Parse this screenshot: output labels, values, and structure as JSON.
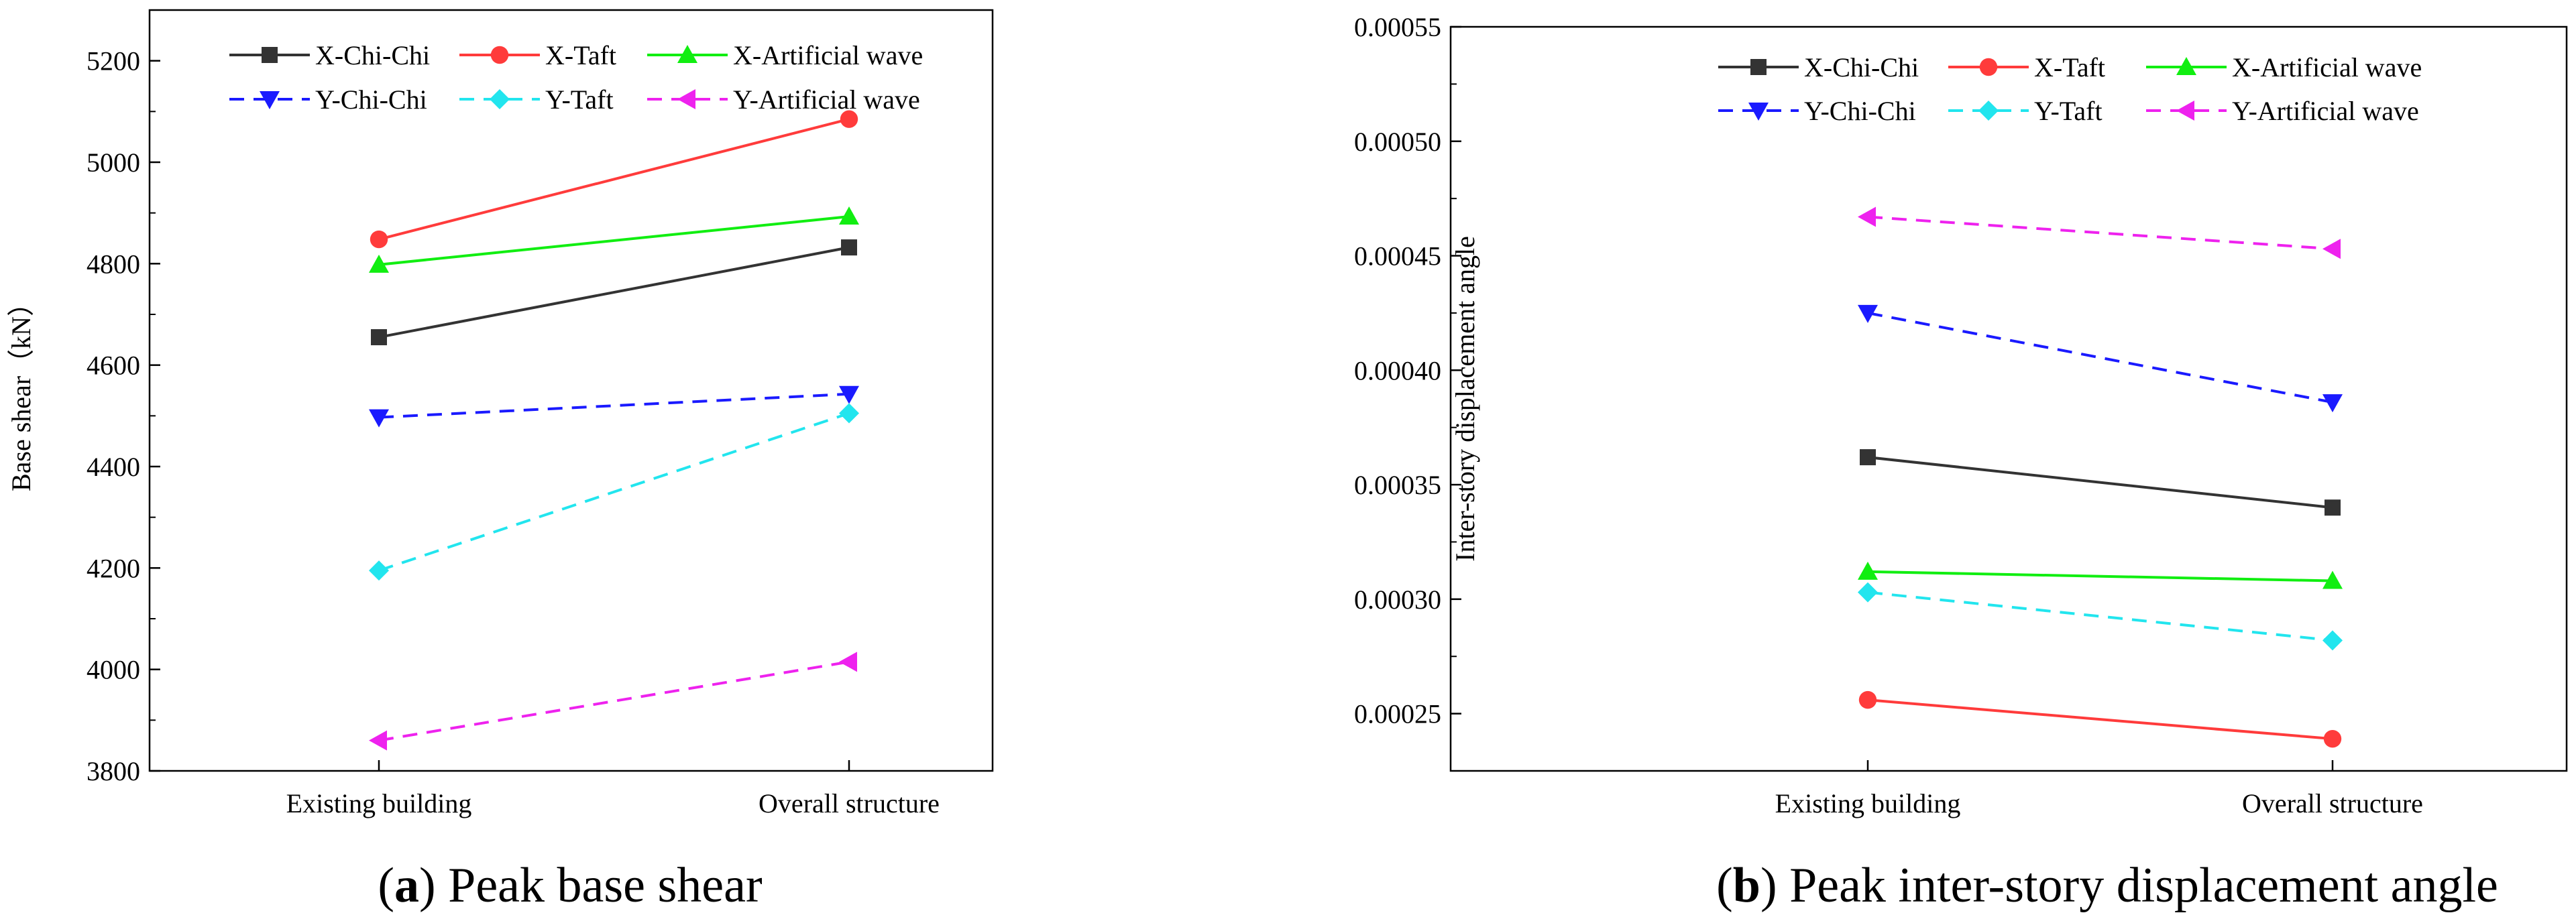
{
  "chart_data": [
    {
      "type": "line",
      "panel_letter": "a",
      "caption": ") Peak base shear",
      "caption_open": "(",
      "categories": [
        "Existing building",
        "Overall structure"
      ],
      "ylabel": "Base shear（kN）",
      "xlabel": "",
      "ylim": [
        3800,
        5300
      ],
      "yticks": [
        3800,
        4000,
        4200,
        4400,
        4600,
        4800,
        5000,
        5200
      ],
      "y_decimals": 0,
      "legend_position": "top",
      "series": [
        {
          "name": "X-Chi-Chi",
          "values": [
            4655,
            4832
          ],
          "color": "#333333",
          "dash": "solid",
          "marker": "square"
        },
        {
          "name": "X-Taft",
          "values": [
            4848,
            5085
          ],
          "color": "#ff3b3b",
          "dash": "solid",
          "marker": "circle"
        },
        {
          "name": "X-Artificial wave",
          "values": [
            4798,
            4893
          ],
          "color": "#11ee11",
          "dash": "solid",
          "marker": "triangle-up"
        },
        {
          "name": "Y-Chi-Chi",
          "values": [
            4497,
            4543
          ],
          "color": "#1a1aff",
          "dash": "dashed",
          "marker": "triangle-down"
        },
        {
          "name": "Y-Taft",
          "values": [
            4195,
            4505
          ],
          "color": "#22e5ee",
          "dash": "dashed",
          "marker": "diamond"
        },
        {
          "name": "Y-Artificial wave",
          "values": [
            3860,
            4015
          ],
          "color": "#ee22ee",
          "dash": "dashed",
          "marker": "triangle-left"
        }
      ]
    },
    {
      "type": "line",
      "panel_letter": "b",
      "caption": ") Peak inter-story displacement angle",
      "caption_open": "(",
      "categories": [
        "Existing building",
        "Overall structure"
      ],
      "ylabel": "Inter-story displacement angle",
      "xlabel": "",
      "ylim": [
        0.000225,
        0.00055
      ],
      "yticks": [
        0.00025,
        0.0003,
        0.00035,
        0.0004,
        0.00045,
        0.0005,
        0.00055
      ],
      "y_decimals": 5,
      "legend_position": "top",
      "series": [
        {
          "name": "X-Chi-Chi",
          "values": [
            0.000362,
            0.00034
          ],
          "color": "#333333",
          "dash": "solid",
          "marker": "square"
        },
        {
          "name": "X-Taft",
          "values": [
            0.000256,
            0.000239
          ],
          "color": "#ff3b3b",
          "dash": "solid",
          "marker": "circle"
        },
        {
          "name": "X-Artificial wave",
          "values": [
            0.000312,
            0.000308
          ],
          "color": "#11ee11",
          "dash": "solid",
          "marker": "triangle-up"
        },
        {
          "name": "Y-Chi-Chi",
          "values": [
            0.000425,
            0.000386
          ],
          "color": "#1a1aff",
          "dash": "dashed",
          "marker": "triangle-down"
        },
        {
          "name": "Y-Taft",
          "values": [
            0.000303,
            0.000282
          ],
          "color": "#22e5ee",
          "dash": "dashed",
          "marker": "diamond"
        },
        {
          "name": "Y-Artificial wave",
          "values": [
            0.000467,
            0.000453
          ],
          "color": "#ee22ee",
          "dash": "dashed",
          "marker": "triangle-left"
        }
      ]
    }
  ]
}
